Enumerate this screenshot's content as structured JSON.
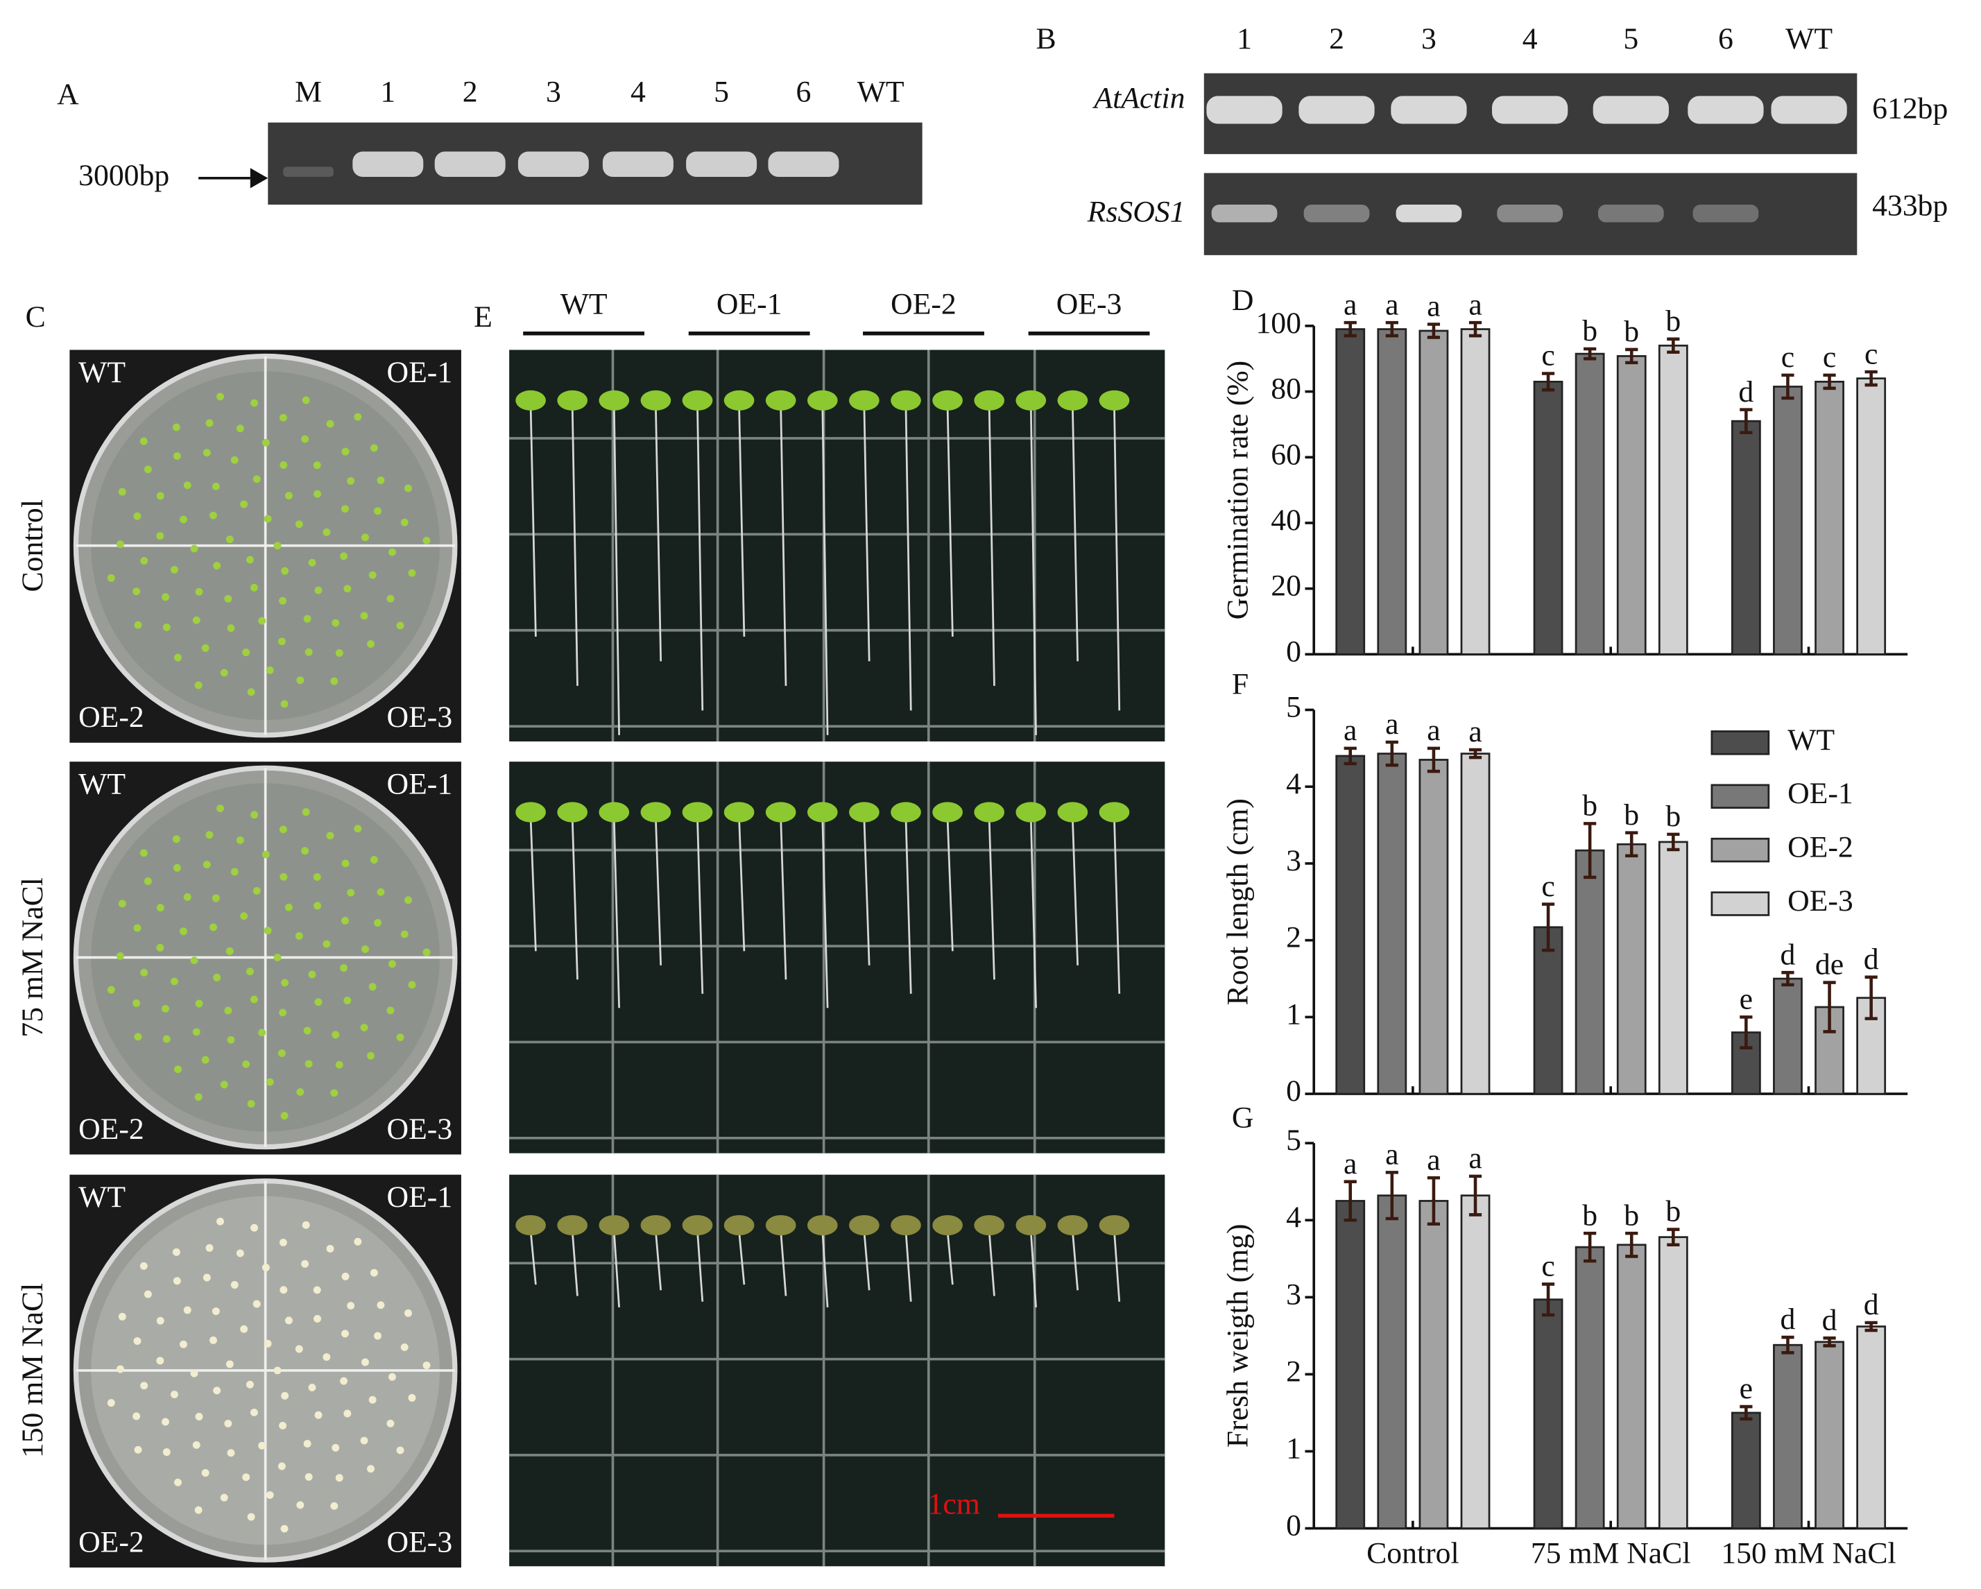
{
  "gel_a": {
    "label": "A",
    "lanes": [
      "M",
      "1",
      "2",
      "3",
      "4",
      "5",
      "6",
      "WT"
    ],
    "marker": "3000bp"
  },
  "gel_b": {
    "label": "B",
    "lanes": [
      "1",
      "2",
      "3",
      "4",
      "5",
      "6",
      "WT"
    ],
    "genes": [
      {
        "name": "AtActin",
        "size": "612bp"
      },
      {
        "name": "RsSOS1",
        "size": "433bp"
      }
    ]
  },
  "panel_c": {
    "label": "C",
    "treatments": [
      "Control",
      "75 mM NaCl",
      "150 mM NaCl"
    ],
    "quadrants": [
      "WT",
      "OE-1",
      "OE-2",
      "OE-3"
    ]
  },
  "panel_e": {
    "label": "E",
    "lines": [
      "WT",
      "OE-1",
      "OE-2",
      "OE-3"
    ],
    "scale_bar": "1cm"
  },
  "chart_data": [
    {
      "type": "bar",
      "panel_label": "D",
      "ylabel": "Germination rate (%)",
      "ylim": [
        0,
        100
      ],
      "yticks": [
        0,
        20,
        40,
        60,
        80,
        100
      ],
      "series": [
        {
          "color": "#4d4d4d",
          "values": [
            99,
            83,
            71
          ],
          "errors": [
            2,
            2.5,
            3.5
          ],
          "letters": [
            "a",
            "c",
            "d"
          ]
        },
        {
          "color": "#787878",
          "values": [
            99,
            91.5,
            81.5
          ],
          "errors": [
            2,
            1.5,
            3.5
          ],
          "letters": [
            "a",
            "b",
            "c"
          ]
        },
        {
          "color": "#a2a2a2",
          "values": [
            98.5,
            90.8,
            83
          ],
          "errors": [
            2,
            2,
            2
          ],
          "letters": [
            "a",
            "b",
            "c"
          ]
        },
        {
          "color": "#d2d2d2",
          "values": [
            99,
            94,
            84
          ],
          "errors": [
            2,
            2,
            2
          ],
          "letters": [
            "a",
            "b",
            "c"
          ]
        }
      ]
    },
    {
      "type": "bar",
      "panel_label": "F",
      "ylabel": "Root length (cm)",
      "ylim": [
        0,
        5
      ],
      "yticks": [
        0,
        1,
        2,
        3,
        4,
        5
      ],
      "series": [
        {
          "name": "WT",
          "color": "#4d4d4d",
          "values": [
            4.4,
            2.17,
            0.8
          ],
          "errors": [
            0.1,
            0.3,
            0.2
          ],
          "letters": [
            "a",
            "c",
            "e"
          ]
        },
        {
          "name": "OE-1",
          "color": "#787878",
          "values": [
            4.43,
            3.17,
            1.5
          ],
          "errors": [
            0.15,
            0.35,
            0.08
          ],
          "letters": [
            "a",
            "b",
            "d"
          ]
        },
        {
          "name": "OE-2",
          "color": "#a2a2a2",
          "values": [
            4.35,
            3.25,
            1.13
          ],
          "errors": [
            0.15,
            0.15,
            0.32
          ],
          "letters": [
            "a",
            "b",
            "de"
          ]
        },
        {
          "name": "OE-3",
          "color": "#d2d2d2",
          "values": [
            4.43,
            3.28,
            1.25
          ],
          "errors": [
            0.05,
            0.1,
            0.27
          ],
          "letters": [
            "a",
            "b",
            "d"
          ]
        }
      ]
    },
    {
      "type": "bar",
      "panel_label": "G",
      "ylabel": "Fresh weigth (mg)",
      "ylim": [
        0,
        5
      ],
      "yticks": [
        0,
        1,
        2,
        3,
        4,
        5
      ],
      "categories": [
        "Control",
        "75 mM NaCl",
        "150 mM NaCl"
      ],
      "series": [
        {
          "color": "#4d4d4d",
          "values": [
            4.25,
            2.97,
            1.5
          ],
          "errors": [
            0.25,
            0.2,
            0.08
          ],
          "letters": [
            "a",
            "c",
            "e"
          ]
        },
        {
          "color": "#787878",
          "values": [
            4.32,
            3.65,
            2.38
          ],
          "errors": [
            0.3,
            0.18,
            0.1
          ],
          "letters": [
            "a",
            "b",
            "d"
          ]
        },
        {
          "color": "#a2a2a2",
          "values": [
            4.25,
            3.68,
            2.42
          ],
          "errors": [
            0.3,
            0.15,
            0.05
          ],
          "letters": [
            "a",
            "b",
            "d"
          ]
        },
        {
          "color": "#d2d2d2",
          "values": [
            4.32,
            3.78,
            2.62
          ],
          "errors": [
            0.25,
            0.1,
            0.05
          ],
          "letters": [
            "a",
            "b",
            "d"
          ]
        }
      ]
    }
  ]
}
